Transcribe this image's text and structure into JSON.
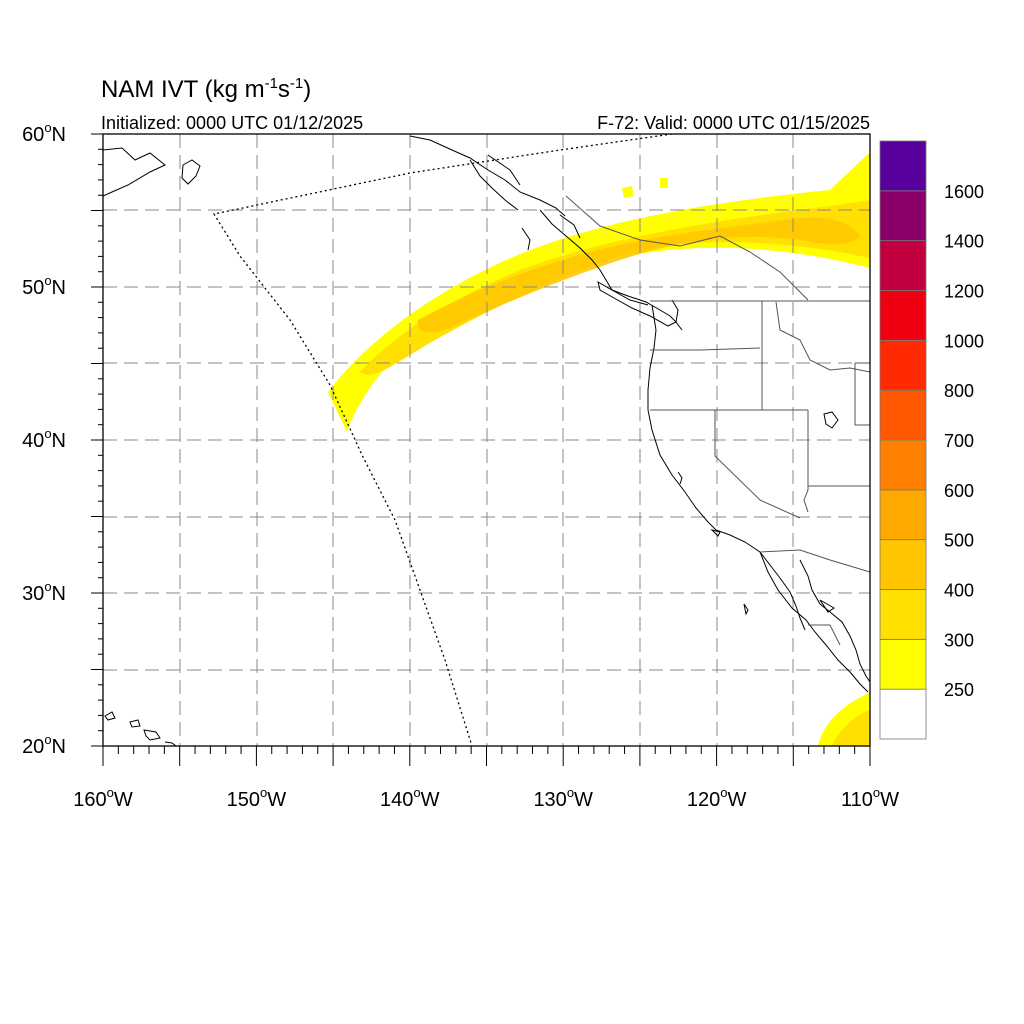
{
  "title_main": "NAM IVT (kg m",
  "title_exp1": "-1",
  "title_mid": "s",
  "title_exp2": "-1",
  "title_end": ")",
  "init_label": "Initialized: 0000 UTC 01/12/2025",
  "valid_label": "F-72: Valid: 0000 UTC 01/15/2025",
  "lat_labels": [
    {
      "deg": "60",
      "hem": "N",
      "value": 60
    },
    {
      "deg": "50",
      "hem": "N",
      "value": 50
    },
    {
      "deg": "40",
      "hem": "N",
      "value": 40
    },
    {
      "deg": "30",
      "hem": "N",
      "value": 30
    },
    {
      "deg": "20",
      "hem": "N",
      "value": 20
    }
  ],
  "lon_labels": [
    {
      "deg": "160",
      "hem": "W",
      "value": -160
    },
    {
      "deg": "150",
      "hem": "W",
      "value": -150
    },
    {
      "deg": "140",
      "hem": "W",
      "value": -140
    },
    {
      "deg": "130",
      "hem": "W",
      "value": -130
    },
    {
      "deg": "120",
      "hem": "W",
      "value": -120
    },
    {
      "deg": "110",
      "hem": "W",
      "value": -110
    }
  ],
  "map_extent": {
    "lon_min": -160,
    "lon_max": -110,
    "lat_min": 20,
    "lat_max": 60
  },
  "colorbar": {
    "levels": [
      "250",
      "300",
      "400",
      "500",
      "600",
      "700",
      "800",
      "1000",
      "1200",
      "1400",
      "1600"
    ],
    "colors": [
      "#ffffff",
      "#ffff00",
      "#ffe000",
      "#ffc600",
      "#ffa800",
      "#ff8000",
      "#ff5800",
      "#ff2a00",
      "#ee0010",
      "#c20040",
      "#8a0068",
      "#58009c"
    ]
  }
}
